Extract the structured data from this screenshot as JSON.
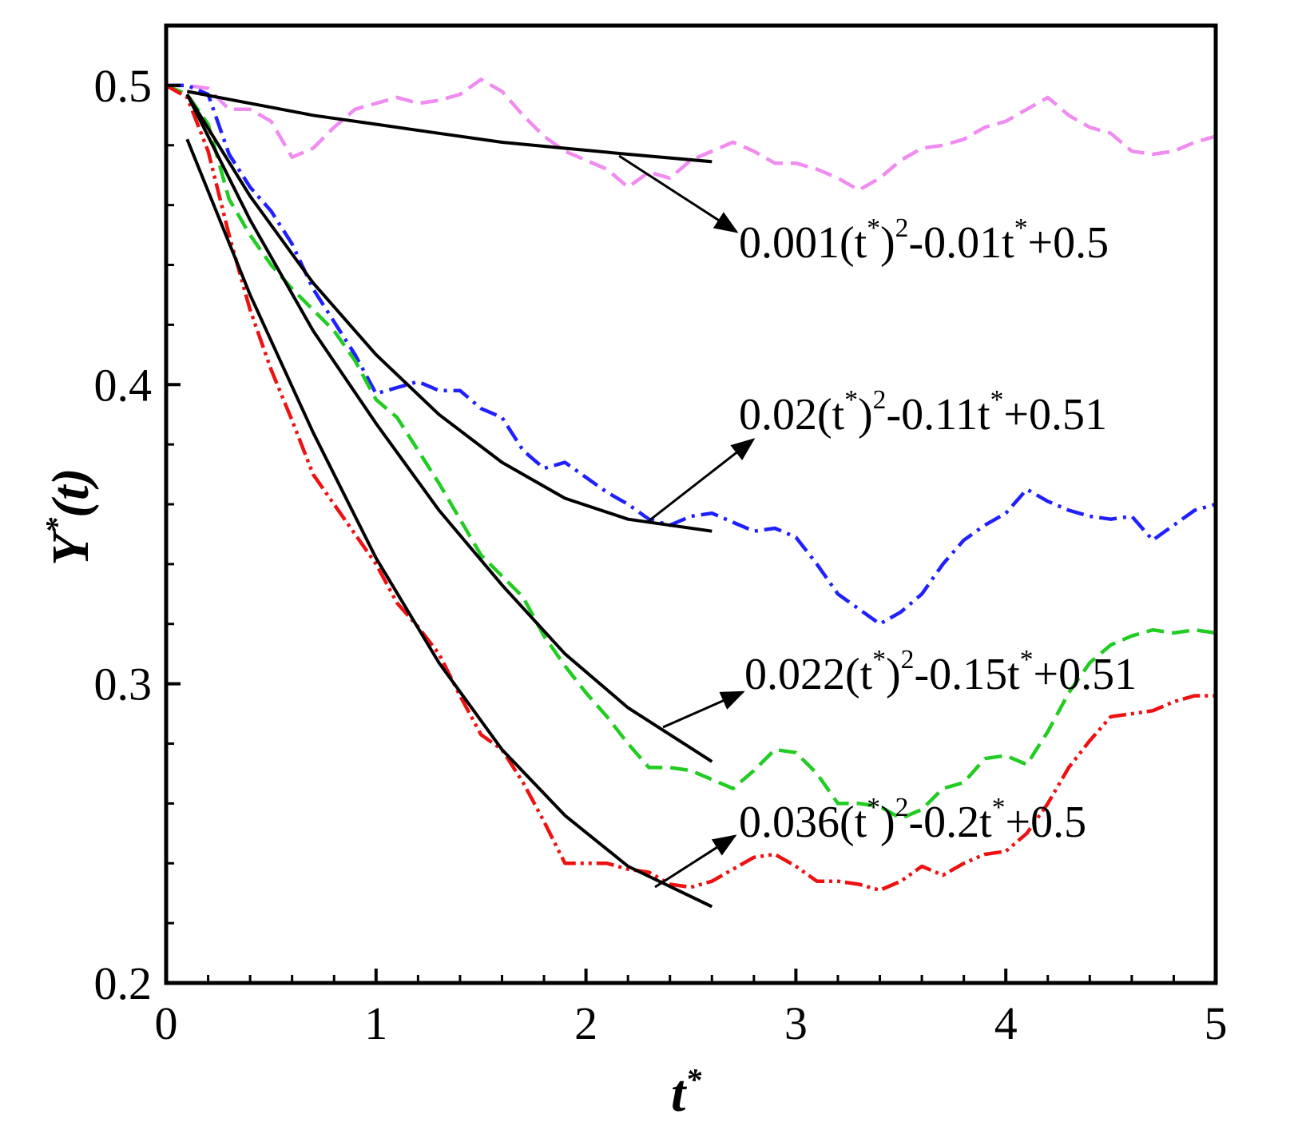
{
  "chart_data": {
    "type": "line",
    "x_label_parts": [
      "t",
      "*"
    ],
    "y_label_parts": [
      "Y",
      "*",
      "(t)"
    ],
    "xlim": [
      0,
      5
    ],
    "xticks": [
      0,
      1,
      2,
      3,
      4,
      5
    ],
    "ylim": [
      0.2,
      0.52
    ],
    "yticks": [
      0.2,
      0.3,
      0.4,
      0.5
    ],
    "x": [
      0,
      0.1,
      0.2,
      0.3,
      0.4,
      0.5,
      0.6,
      0.7,
      0.8,
      0.9,
      1.0,
      1.1,
      1.2,
      1.3,
      1.4,
      1.5,
      1.6,
      1.7,
      1.8,
      1.9,
      2.0,
      2.1,
      2.2,
      2.3,
      2.4,
      2.5,
      2.6,
      2.7,
      2.8,
      2.9,
      3.0,
      3.1,
      3.2,
      3.3,
      3.4,
      3.5,
      3.6,
      3.7,
      3.8,
      3.9,
      4.0,
      4.1,
      4.2,
      4.3,
      4.4,
      4.5,
      4.6,
      4.7,
      4.8,
      4.9,
      5.0
    ],
    "series": [
      {
        "color": "#f08cf0",
        "style": "dashed",
        "values": [
          0.5,
          0.5,
          0.499,
          0.492,
          0.492,
          0.488,
          0.476,
          0.479,
          0.486,
          0.492,
          0.494,
          0.496,
          0.494,
          0.495,
          0.497,
          0.502,
          0.498,
          0.49,
          0.483,
          0.478,
          0.475,
          0.472,
          0.466,
          0.471,
          0.469,
          0.475,
          0.478,
          0.481,
          0.478,
          0.474,
          0.474,
          0.472,
          0.469,
          0.465,
          0.469,
          0.475,
          0.479,
          0.48,
          0.482,
          0.486,
          0.488,
          0.492,
          0.496,
          0.49,
          0.486,
          0.484,
          0.478,
          0.477,
          0.478,
          0.481,
          0.483
        ]
      },
      {
        "color": "#2020ff",
        "style": "dashdot",
        "values": [
          0.5,
          0.5,
          0.497,
          0.477,
          0.466,
          0.458,
          0.447,
          0.432,
          0.421,
          0.41,
          0.397,
          0.399,
          0.401,
          0.398,
          0.398,
          0.392,
          0.389,
          0.378,
          0.372,
          0.374,
          0.369,
          0.364,
          0.36,
          0.355,
          0.353,
          0.356,
          0.357,
          0.354,
          0.351,
          0.352,
          0.349,
          0.34,
          0.33,
          0.325,
          0.32,
          0.324,
          0.33,
          0.34,
          0.348,
          0.353,
          0.357,
          0.365,
          0.361,
          0.358,
          0.356,
          0.355,
          0.356,
          0.348,
          0.353,
          0.358,
          0.36
        ]
      },
      {
        "color": "#22cc22",
        "style": "dashed",
        "values": [
          0.5,
          0.497,
          0.487,
          0.462,
          0.45,
          0.44,
          0.432,
          0.425,
          0.418,
          0.408,
          0.395,
          0.389,
          0.378,
          0.367,
          0.355,
          0.343,
          0.336,
          0.329,
          0.316,
          0.306,
          0.297,
          0.289,
          0.28,
          0.272,
          0.272,
          0.271,
          0.268,
          0.265,
          0.271,
          0.278,
          0.277,
          0.27,
          0.26,
          0.26,
          0.259,
          0.255,
          0.258,
          0.265,
          0.267,
          0.275,
          0.276,
          0.273,
          0.284,
          0.297,
          0.307,
          0.313,
          0.316,
          0.318,
          0.317,
          0.318,
          0.317
        ]
      },
      {
        "color": "#ee1111",
        "style": "dashdotdot",
        "values": [
          0.5,
          0.496,
          0.478,
          0.45,
          0.425,
          0.405,
          0.388,
          0.37,
          0.36,
          0.35,
          0.34,
          0.327,
          0.319,
          0.31,
          0.296,
          0.283,
          0.278,
          0.267,
          0.254,
          0.24,
          0.24,
          0.24,
          0.238,
          0.237,
          0.233,
          0.232,
          0.234,
          0.238,
          0.242,
          0.243,
          0.239,
          0.234,
          0.234,
          0.233,
          0.231,
          0.234,
          0.239,
          0.236,
          0.24,
          0.243,
          0.244,
          0.25,
          0.26,
          0.272,
          0.281,
          0.289,
          0.29,
          0.291,
          0.294,
          0.296,
          0.296
        ]
      },
      {
        "color": "#000000",
        "style": "solid",
        "x": [
          0.1,
          0.4,
          0.7,
          1.0,
          1.3,
          1.6,
          1.9,
          2.2,
          2.6
        ],
        "values": [
          0.498,
          0.494,
          0.49,
          0.487,
          0.484,
          0.481,
          0.479,
          0.477,
          0.4745
        ]
      },
      {
        "color": "#000000",
        "style": "solid",
        "x": [
          0.1,
          0.4,
          0.7,
          1.0,
          1.3,
          1.6,
          1.9,
          2.2,
          2.6
        ],
        "values": [
          0.497,
          0.463,
          0.434,
          0.41,
          0.39,
          0.374,
          0.362,
          0.355,
          0.351
        ]
      },
      {
        "color": "#000000",
        "style": "solid",
        "x": [
          0.1,
          0.4,
          0.7,
          1.0,
          1.3,
          1.6,
          1.9,
          2.2,
          2.6
        ],
        "values": [
          0.497,
          0.455,
          0.418,
          0.387,
          0.358,
          0.333,
          0.31,
          0.292,
          0.274
        ]
      },
      {
        "color": "#000000",
        "style": "solid",
        "x": [
          0.1,
          0.4,
          0.7,
          1.0,
          1.3,
          1.6,
          1.9,
          2.2,
          2.6
        ],
        "values": [
          0.482,
          0.43,
          0.384,
          0.342,
          0.307,
          0.278,
          0.256,
          0.239,
          0.2255
        ]
      }
    ],
    "annotations": [
      {
        "parts": [
          "0.001(t",
          "*",
          ")",
          "2",
          "-0.01t",
          "*",
          "+0.5"
        ]
      },
      {
        "parts": [
          "0.02(t",
          "*",
          ")",
          "2",
          "-0.11t",
          "*",
          "+0.51"
        ]
      },
      {
        "parts": [
          "0.022(t",
          "*",
          ")",
          "2",
          "-0.15t",
          "*",
          "+0.51"
        ]
      },
      {
        "parts": [
          "0.036(t",
          "*",
          ")",
          "2",
          "-0.2t",
          "*",
          "+0.5"
        ]
      }
    ]
  }
}
